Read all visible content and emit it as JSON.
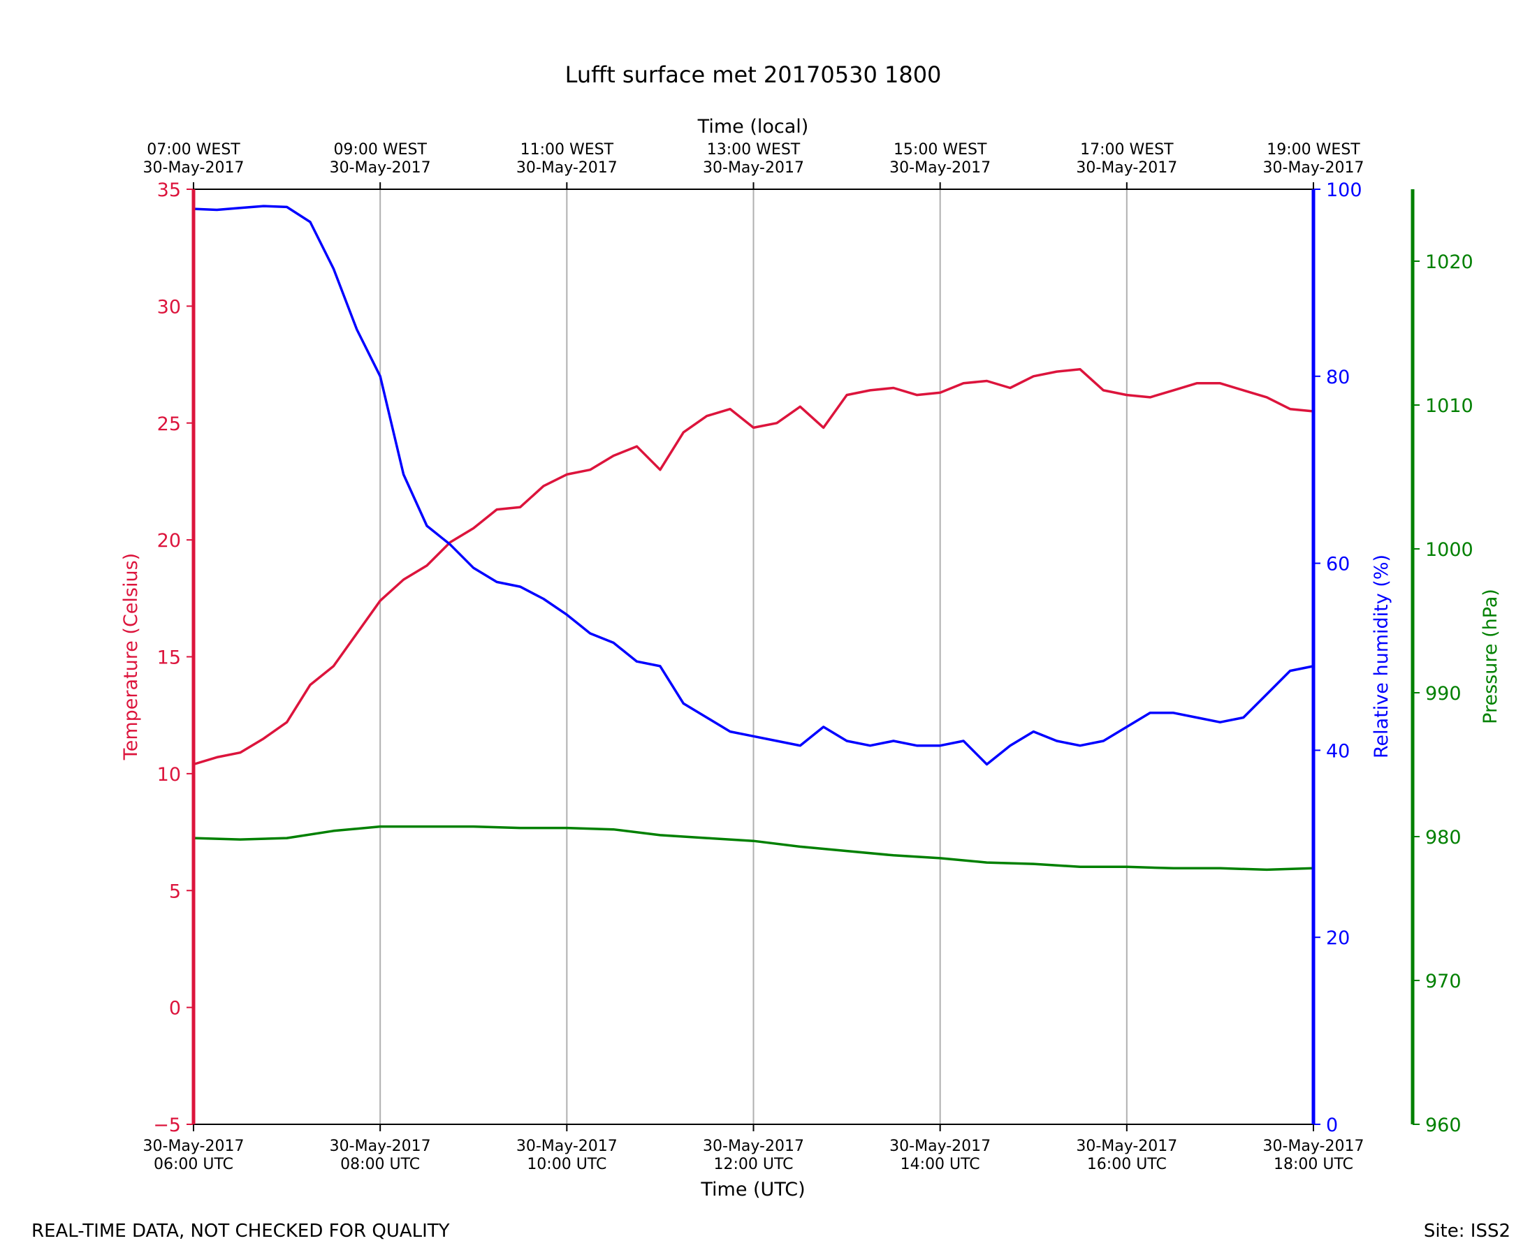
{
  "chart_data": {
    "type": "line",
    "title": "Lufft surface met 20170530 1800",
    "xlabel": "Time (UTC)",
    "xlabel_top": "Time (local)",
    "x_range_utc_hours": [
      6,
      18
    ],
    "x_ticks_bottom": [
      {
        "x": 6,
        "line1": "30-May-2017",
        "line2": "06:00 UTC"
      },
      {
        "x": 8,
        "line1": "30-May-2017",
        "line2": "08:00 UTC"
      },
      {
        "x": 10,
        "line1": "30-May-2017",
        "line2": "10:00 UTC"
      },
      {
        "x": 12,
        "line1": "30-May-2017",
        "line2": "12:00 UTC"
      },
      {
        "x": 14,
        "line1": "30-May-2017",
        "line2": "14:00 UTC"
      },
      {
        "x": 16,
        "line1": "30-May-2017",
        "line2": "16:00 UTC"
      },
      {
        "x": 18,
        "line1": "30-May-2017",
        "line2": "18:00 UTC"
      }
    ],
    "x_ticks_top": [
      {
        "x": 6,
        "line1": "07:00 WEST",
        "line2": "30-May-2017"
      },
      {
        "x": 8,
        "line1": "09:00 WEST",
        "line2": "30-May-2017"
      },
      {
        "x": 10,
        "line1": "11:00 WEST",
        "line2": "30-May-2017"
      },
      {
        "x": 12,
        "line1": "13:00 WEST",
        "line2": "30-May-2017"
      },
      {
        "x": 14,
        "line1": "15:00 WEST",
        "line2": "30-May-2017"
      },
      {
        "x": 16,
        "line1": "17:00 WEST",
        "line2": "30-May-2017"
      },
      {
        "x": 18,
        "line1": "19:00 WEST",
        "line2": "30-May-2017"
      }
    ],
    "grid": "vertical",
    "axes": {
      "temperature": {
        "label": "Temperature (Celsius)",
        "range": [
          -5,
          35
        ],
        "ticks": [
          -5,
          0,
          5,
          10,
          15,
          20,
          25,
          30,
          35
        ],
        "color": "#dc143c",
        "side": "left"
      },
      "humidity": {
        "label": "Relative humidity (%)",
        "range": [
          0,
          100
        ],
        "ticks": [
          0,
          20,
          40,
          60,
          80,
          100
        ],
        "color": "#0000ff",
        "side": "right"
      },
      "pressure": {
        "label": "Pressure (hPa)",
        "range": [
          960,
          1025
        ],
        "ticks": [
          960,
          970,
          980,
          990,
          1000,
          1010,
          1020
        ],
        "color": "#008000",
        "side": "right-offset"
      }
    },
    "series": [
      {
        "axis": "temperature",
        "color": "#dc143c",
        "x": [
          6.0,
          6.25,
          6.5,
          6.75,
          7.0,
          7.25,
          7.5,
          7.75,
          8.0,
          8.25,
          8.5,
          8.75,
          9.0,
          9.25,
          9.5,
          9.75,
          10.0,
          10.25,
          10.5,
          10.75,
          11.0,
          11.25,
          11.5,
          11.75,
          12.0,
          12.25,
          12.5,
          12.75,
          13.0,
          13.25,
          13.5,
          13.75,
          14.0,
          14.25,
          14.5,
          14.75,
          15.0,
          15.25,
          15.5,
          15.75,
          16.0,
          16.25,
          16.5,
          16.75,
          17.0,
          17.25,
          17.5,
          17.75,
          18.0
        ],
        "values": [
          10.4,
          10.7,
          10.9,
          11.5,
          12.2,
          13.8,
          14.6,
          16.0,
          17.4,
          18.3,
          18.9,
          19.9,
          20.5,
          21.3,
          21.4,
          22.3,
          22.8,
          23.0,
          23.6,
          24.0,
          23.0,
          24.6,
          25.3,
          25.6,
          24.8,
          25.0,
          25.7,
          24.8,
          26.2,
          26.4,
          26.5,
          26.2,
          26.3,
          26.7,
          26.8,
          26.5,
          27.0,
          27.2,
          27.3,
          26.4,
          26.2,
          26.1,
          26.4,
          26.7,
          26.7,
          26.4,
          26.1,
          25.6,
          25.5
        ]
      },
      {
        "axis": "humidity",
        "color": "#0000ff",
        "x": [
          6.0,
          6.25,
          6.5,
          6.75,
          7.0,
          7.25,
          7.5,
          7.75,
          8.0,
          8.25,
          8.5,
          8.75,
          9.0,
          9.25,
          9.5,
          9.75,
          10.0,
          10.25,
          10.5,
          10.75,
          11.0,
          11.25,
          11.5,
          11.75,
          12.0,
          12.25,
          12.5,
          12.75,
          13.0,
          13.25,
          13.5,
          13.75,
          14.0,
          14.25,
          14.5,
          14.75,
          15.0,
          15.25,
          15.5,
          15.75,
          16.0,
          16.25,
          16.5,
          16.75,
          17.0,
          17.25,
          17.5,
          17.75,
          18.0
        ],
        "values": [
          97.9,
          97.8,
          98.0,
          98.2,
          98.1,
          96.5,
          91.5,
          85.0,
          80.0,
          69.5,
          64.0,
          62.0,
          59.5,
          58.0,
          57.5,
          56.2,
          54.5,
          52.5,
          51.5,
          49.5,
          49.0,
          45.0,
          43.5,
          42.0,
          41.5,
          41.0,
          40.5,
          42.5,
          41.0,
          40.5,
          41.0,
          40.5,
          40.5,
          41.0,
          38.5,
          40.5,
          42.0,
          41.0,
          40.5,
          41.0,
          42.5,
          44.0,
          44.0,
          43.5,
          43.0,
          43.5,
          46.0,
          48.5,
          49.0
        ]
      },
      {
        "axis": "pressure",
        "color": "#008000",
        "x": [
          6.0,
          6.5,
          7.0,
          7.5,
          8.0,
          8.5,
          9.0,
          9.5,
          10.0,
          10.5,
          11.0,
          11.5,
          12.0,
          12.5,
          13.0,
          13.5,
          14.0,
          14.5,
          15.0,
          15.5,
          16.0,
          16.5,
          17.0,
          17.5,
          18.0
        ],
        "values": [
          979.9,
          979.8,
          979.9,
          980.4,
          980.7,
          980.7,
          980.7,
          980.6,
          980.6,
          980.5,
          980.1,
          979.9,
          979.7,
          979.3,
          979.0,
          978.7,
          978.5,
          978.2,
          978.1,
          977.9,
          977.9,
          977.8,
          977.8,
          977.7,
          977.8
        ]
      }
    ]
  },
  "footer": {
    "left_note": "REAL-TIME DATA, NOT CHECKED FOR QUALITY",
    "right_note": "Site: ISS2"
  }
}
